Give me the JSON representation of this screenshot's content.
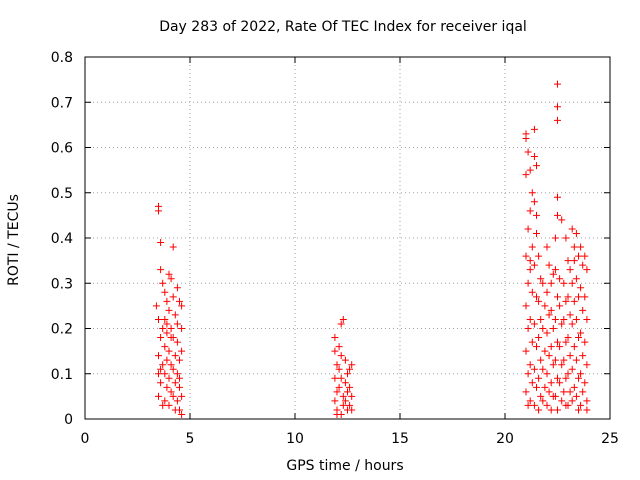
{
  "chart_data": {
    "type": "scatter",
    "title": "Day 283 of 2022, Rate Of TEC Index for receiver iqal",
    "xlabel": "GPS time / hours",
    "ylabel": "ROTI / TECUs",
    "xlim": [
      0,
      25
    ],
    "ylim": [
      0,
      0.8
    ],
    "xticks": [
      "0",
      "5",
      "10",
      "15",
      "20",
      "25"
    ],
    "yticks": [
      "0",
      "0.1",
      "0.2",
      "0.3",
      "0.4",
      "0.5",
      "0.6",
      "0.7",
      "0.8"
    ],
    "grid": true,
    "marker": "+",
    "color": "#ff0000",
    "points": [
      [
        3.5,
        0.47
      ],
      [
        3.5,
        0.46
      ],
      [
        3.6,
        0.39
      ],
      [
        3.6,
        0.33
      ],
      [
        3.7,
        0.3
      ],
      [
        3.4,
        0.25
      ],
      [
        3.5,
        0.22
      ],
      [
        3.6,
        0.18
      ],
      [
        3.5,
        0.14
      ],
      [
        3.7,
        0.12
      ],
      [
        3.5,
        0.1
      ],
      [
        3.6,
        0.08
      ],
      [
        3.5,
        0.05
      ],
      [
        3.7,
        0.03
      ],
      [
        3.8,
        0.28
      ],
      [
        3.9,
        0.26
      ],
      [
        3.8,
        0.22
      ],
      [
        3.9,
        0.19
      ],
      [
        3.8,
        0.16
      ],
      [
        3.9,
        0.13
      ],
      [
        3.8,
        0.1
      ],
      [
        3.9,
        0.07
      ],
      [
        3.8,
        0.04
      ],
      [
        4.0,
        0.32
      ],
      [
        4.0,
        0.24
      ],
      [
        4.1,
        0.31
      ],
      [
        4.1,
        0.2
      ],
      [
        4.0,
        0.15
      ],
      [
        4.1,
        0.12
      ],
      [
        4.0,
        0.09
      ],
      [
        4.1,
        0.06
      ],
      [
        4.0,
        0.03
      ],
      [
        4.2,
        0.38
      ],
      [
        4.2,
        0.27
      ],
      [
        4.3,
        0.23
      ],
      [
        4.2,
        0.18
      ],
      [
        4.3,
        0.14
      ],
      [
        4.2,
        0.11
      ],
      [
        4.3,
        0.08
      ],
      [
        4.2,
        0.05
      ],
      [
        4.3,
        0.02
      ],
      [
        4.4,
        0.29
      ],
      [
        4.4,
        0.21
      ],
      [
        4.5,
        0.26
      ],
      [
        4.4,
        0.17
      ],
      [
        4.5,
        0.13
      ],
      [
        4.4,
        0.1
      ],
      [
        4.5,
        0.07
      ],
      [
        4.4,
        0.04
      ],
      [
        4.5,
        0.02
      ],
      [
        4.6,
        0.25
      ],
      [
        4.6,
        0.2
      ],
      [
        4.6,
        0.15
      ],
      [
        4.5,
        0.09
      ],
      [
        4.6,
        0.05
      ],
      [
        4.6,
        0.01
      ],
      [
        3.7,
        0.2
      ],
      [
        3.6,
        0.11
      ],
      [
        3.9,
        0.21
      ],
      [
        4.1,
        0.18
      ],
      [
        11.9,
        0.18
      ],
      [
        11.9,
        0.15
      ],
      [
        12.0,
        0.12
      ],
      [
        11.9,
        0.09
      ],
      [
        12.0,
        0.06
      ],
      [
        11.9,
        0.04
      ],
      [
        12.0,
        0.02
      ],
      [
        12.1,
        0.16
      ],
      [
        12.1,
        0.11
      ],
      [
        12.1,
        0.07
      ],
      [
        12.2,
        0.21
      ],
      [
        12.2,
        0.14
      ],
      [
        12.2,
        0.09
      ],
      [
        12.3,
        0.22
      ],
      [
        12.3,
        0.05
      ],
      [
        12.3,
        0.03
      ],
      [
        12.4,
        0.13
      ],
      [
        12.4,
        0.08
      ],
      [
        12.4,
        0.04
      ],
      [
        12.5,
        0.1
      ],
      [
        12.5,
        0.06
      ],
      [
        12.5,
        0.02
      ],
      [
        12.6,
        0.11
      ],
      [
        12.6,
        0.07
      ],
      [
        12.6,
        0.03
      ],
      [
        12.7,
        0.12
      ],
      [
        12.7,
        0.05
      ],
      [
        12.7,
        0.02
      ],
      [
        12.0,
        0.01
      ],
      [
        12.2,
        0.01
      ],
      [
        21.0,
        0.63
      ],
      [
        21.0,
        0.62
      ],
      [
        21.0,
        0.54
      ],
      [
        21.1,
        0.59
      ],
      [
        21.1,
        0.42
      ],
      [
        21.0,
        0.36
      ],
      [
        21.1,
        0.3
      ],
      [
        21.0,
        0.25
      ],
      [
        21.1,
        0.2
      ],
      [
        21.0,
        0.15
      ],
      [
        21.1,
        0.1
      ],
      [
        21.0,
        0.06
      ],
      [
        21.1,
        0.03
      ],
      [
        21.2,
        0.55
      ],
      [
        21.2,
        0.46
      ],
      [
        21.3,
        0.38
      ],
      [
        21.2,
        0.33
      ],
      [
        21.3,
        0.28
      ],
      [
        21.2,
        0.22
      ],
      [
        21.3,
        0.17
      ],
      [
        21.2,
        0.12
      ],
      [
        21.3,
        0.08
      ],
      [
        21.2,
        0.04
      ],
      [
        21.4,
        0.64
      ],
      [
        21.4,
        0.58
      ],
      [
        21.5,
        0.56
      ],
      [
        21.4,
        0.48
      ],
      [
        21.5,
        0.41
      ],
      [
        21.4,
        0.34
      ],
      [
        21.5,
        0.27
      ],
      [
        21.4,
        0.21
      ],
      [
        21.5,
        0.16
      ],
      [
        21.4,
        0.11
      ],
      [
        21.5,
        0.07
      ],
      [
        21.4,
        0.03
      ],
      [
        21.6,
        0.36
      ],
      [
        21.7,
        0.31
      ],
      [
        21.6,
        0.26
      ],
      [
        21.7,
        0.22
      ],
      [
        21.6,
        0.18
      ],
      [
        21.7,
        0.13
      ],
      [
        21.6,
        0.09
      ],
      [
        21.7,
        0.05
      ],
      [
        21.6,
        0.02
      ],
      [
        21.8,
        0.3
      ],
      [
        21.9,
        0.25
      ],
      [
        21.8,
        0.2
      ],
      [
        21.9,
        0.15
      ],
      [
        21.8,
        0.11
      ],
      [
        21.9,
        0.07
      ],
      [
        21.8,
        0.04
      ],
      [
        22.0,
        0.38
      ],
      [
        22.1,
        0.34
      ],
      [
        22.0,
        0.28
      ],
      [
        22.1,
        0.23
      ],
      [
        22.0,
        0.19
      ],
      [
        22.1,
        0.14
      ],
      [
        22.0,
        0.1
      ],
      [
        22.1,
        0.06
      ],
      [
        22.0,
        0.03
      ],
      [
        22.2,
        0.3
      ],
      [
        22.3,
        0.32
      ],
      [
        22.2,
        0.24
      ],
      [
        22.3,
        0.2
      ],
      [
        22.2,
        0.16
      ],
      [
        22.3,
        0.12
      ],
      [
        22.2,
        0.08
      ],
      [
        22.3,
        0.05
      ],
      [
        22.2,
        0.02
      ],
      [
        22.4,
        0.4
      ],
      [
        22.5,
        0.74
      ],
      [
        22.5,
        0.69
      ],
      [
        22.5,
        0.66
      ],
      [
        22.5,
        0.49
      ],
      [
        22.5,
        0.45
      ],
      [
        22.4,
        0.33
      ],
      [
        22.5,
        0.27
      ],
      [
        22.4,
        0.22
      ],
      [
        22.5,
        0.17
      ],
      [
        22.4,
        0.13
      ],
      [
        22.5,
        0.09
      ],
      [
        22.4,
        0.05
      ],
      [
        22.5,
        0.02
      ],
      [
        22.6,
        0.31
      ],
      [
        22.7,
        0.44
      ],
      [
        22.6,
        0.25
      ],
      [
        22.7,
        0.21
      ],
      [
        22.6,
        0.16
      ],
      [
        22.7,
        0.12
      ],
      [
        22.6,
        0.08
      ],
      [
        22.7,
        0.04
      ],
      [
        22.8,
        0.3
      ],
      [
        22.9,
        0.26
      ],
      [
        22.8,
        0.22
      ],
      [
        22.9,
        0.17
      ],
      [
        22.8,
        0.13
      ],
      [
        22.9,
        0.09
      ],
      [
        22.8,
        0.06
      ],
      [
        22.9,
        0.03
      ],
      [
        23.0,
        0.35
      ],
      [
        23.1,
        0.33
      ],
      [
        23.0,
        0.27
      ],
      [
        23.1,
        0.23
      ],
      [
        23.0,
        0.18
      ],
      [
        23.1,
        0.14
      ],
      [
        23.0,
        0.1
      ],
      [
        23.1,
        0.06
      ],
      [
        23.0,
        0.03
      ],
      [
        23.2,
        0.42
      ],
      [
        23.3,
        0.38
      ],
      [
        23.2,
        0.3
      ],
      [
        23.3,
        0.26
      ],
      [
        23.2,
        0.21
      ],
      [
        23.3,
        0.16
      ],
      [
        23.2,
        0.11
      ],
      [
        23.3,
        0.07
      ],
      [
        23.2,
        0.04
      ],
      [
        23.4,
        0.41
      ],
      [
        23.5,
        0.36
      ],
      [
        23.4,
        0.31
      ],
      [
        23.5,
        0.27
      ],
      [
        23.4,
        0.22
      ],
      [
        23.5,
        0.18
      ],
      [
        23.4,
        0.13
      ],
      [
        23.5,
        0.09
      ],
      [
        23.4,
        0.05
      ],
      [
        23.5,
        0.02
      ],
      [
        23.6,
        0.38
      ],
      [
        23.7,
        0.34
      ],
      [
        23.6,
        0.29
      ],
      [
        23.7,
        0.24
      ],
      [
        23.6,
        0.19
      ],
      [
        23.7,
        0.14
      ],
      [
        23.6,
        0.1
      ],
      [
        23.7,
        0.06
      ],
      [
        23.6,
        0.03
      ],
      [
        23.8,
        0.36
      ],
      [
        23.9,
        0.33
      ],
      [
        23.8,
        0.27
      ],
      [
        23.9,
        0.22
      ],
      [
        23.8,
        0.17
      ],
      [
        23.9,
        0.12
      ],
      [
        23.8,
        0.08
      ],
      [
        23.9,
        0.04
      ],
      [
        23.9,
        0.02
      ],
      [
        21.3,
        0.5
      ],
      [
        21.5,
        0.45
      ],
      [
        21.2,
        0.35
      ],
      [
        22.9,
        0.4
      ],
      [
        23.3,
        0.35
      ]
    ]
  }
}
